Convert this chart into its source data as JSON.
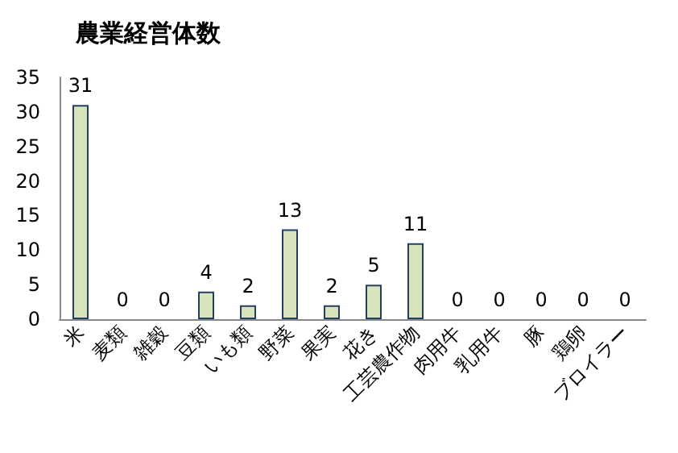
{
  "chart_data": {
    "type": "bar",
    "title": "農業経営体数",
    "categories": [
      "米",
      "麦類",
      "雑穀",
      "豆類",
      "いも類",
      "野菜",
      "果実",
      "花き",
      "工芸農作物",
      "肉用牛",
      "乳用牛",
      "豚",
      "鶏卵",
      "ブロイラー"
    ],
    "values": [
      31,
      0,
      0,
      4,
      2,
      13,
      2,
      5,
      11,
      0,
      0,
      0,
      0,
      0
    ],
    "color": "#d7e4bd",
    "ylim": [
      0,
      35
    ],
    "yticks": [
      0,
      5,
      10,
      15,
      20,
      25,
      30,
      35
    ],
    "grid": false,
    "data_labels": true
  }
}
